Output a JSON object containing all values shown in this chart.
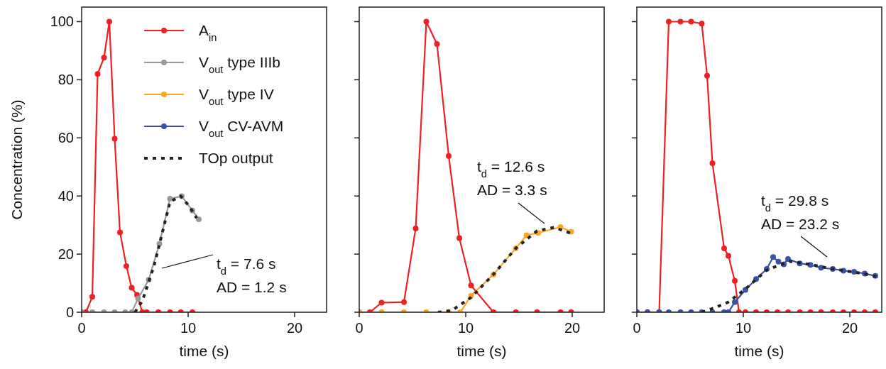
{
  "chart_data": [
    {
      "type": "line",
      "ylabel": "Concentration (%)",
      "xlabel": "time (s)",
      "xlim": [
        0,
        23
      ],
      "ylim": [
        0,
        105
      ],
      "xticks": [
        0,
        10,
        20
      ],
      "yticks": [
        0,
        20,
        40,
        60,
        80,
        100
      ],
      "legend": "top right",
      "grid": false,
      "annotations": [
        "t$_{d}$ = 7.6 s\nAD = 1.2 s"
      ],
      "series": [
        {
          "name": "A$_{in}$",
          "color": "#ee2025",
          "marker": "circle",
          "line_style": "solid",
          "x": [
            0,
            0.4,
            1.0,
            1.5,
            2.1,
            2.6,
            3.1,
            3.6,
            4.2,
            4.7,
            5.2,
            5.7,
            6.1,
            7.2,
            8.3,
            9.3,
            10.4
          ],
          "values": [
            0,
            0,
            5.3,
            82,
            87.6,
            100,
            59.7,
            27.5,
            15.9,
            8.4,
            6,
            0,
            0,
            0,
            0,
            0,
            0
          ]
        },
        {
          "name": "V$_{out}$ type IIIb",
          "color": "#999999",
          "marker": "circle",
          "line_style": "solid",
          "x": [
            0,
            1,
            2.1,
            3.1,
            4.1,
            4.7,
            5.3,
            6.3,
            7.3,
            8.3,
            9.4,
            10.4,
            11.0
          ],
          "values": [
            0,
            0,
            0,
            0,
            0,
            0,
            4.7,
            11.2,
            23.5,
            39.1,
            39.9,
            35,
            32
          ]
        },
        {
          "name": "TOp output",
          "color": "#222222",
          "marker": "none",
          "line_style": "dotted",
          "x": [
            5.0,
            5.7,
            6.8,
            8.3,
            9.3,
            10.1,
            10.8
          ],
          "values": [
            0,
            3.9,
            16,
            38,
            40,
            36.5,
            32.4
          ]
        }
      ]
    },
    {
      "type": "line",
      "xlabel": "time (s)",
      "xlim": [
        0,
        23
      ],
      "ylim": [
        0,
        105
      ],
      "xticks": [
        0,
        10,
        20
      ],
      "yticks": [
        0,
        20,
        40,
        60,
        80,
        100
      ],
      "tick_labels": "x",
      "grid": false,
      "annotations": [
        "t$_{d}$ = 12.6 s\nAD = 3.3 s"
      ],
      "series": [
        {
          "name": "A$_{in}$",
          "color": "#ee2025",
          "marker": "circle",
          "line_style": "solid",
          "x": [
            0,
            1.0,
            2.1,
            4.2,
            5.3,
            6.3,
            7.3,
            8.4,
            9.4,
            10.5,
            12.6,
            14.7,
            16.7,
            18.9,
            19.9
          ],
          "values": [
            0,
            0,
            3.3,
            3.5,
            28.8,
            100,
            92.3,
            53.8,
            25.5,
            9.2,
            0,
            0,
            0,
            0,
            0
          ]
        },
        {
          "name": "V$_{out}$ type IV",
          "color": "#f9a825",
          "marker": "circle",
          "line_style": "solid",
          "x": [
            0,
            2.1,
            4.2,
            6.3,
            8.4,
            9.5,
            10.5,
            12.6,
            14.7,
            15.7,
            16.8,
            18.9,
            19.9
          ],
          "values": [
            0,
            0,
            0,
            0,
            0,
            0,
            5.7,
            13,
            22,
            26.5,
            27.3,
            29.3,
            27.7
          ]
        },
        {
          "name": "TOp output",
          "color": "#222222",
          "marker": "none",
          "line_style": "dotted",
          "x": [
            7.4,
            8.7,
            10.5,
            12.6,
            14.7,
            16.7,
            18.3,
            19.9
          ],
          "values": [
            0,
            0.6,
            5.1,
            13,
            22,
            28,
            29.2,
            27.1
          ]
        }
      ]
    },
    {
      "type": "line",
      "xlabel": "time (s)",
      "xlim": [
        0,
        23
      ],
      "ylim": [
        0,
        105
      ],
      "xticks": [
        0,
        10,
        20
      ],
      "yticks": [
        0,
        20,
        40,
        60,
        80,
        100
      ],
      "tick_labels": "x",
      "grid": false,
      "annotations": [
        "t$_{d}$ = 29.8 s\nAD = 23.2 s"
      ],
      "series": [
        {
          "name": "A$_{in}$",
          "color": "#ee2025",
          "marker": "circle",
          "line_style": "solid",
          "x": [
            0,
            1.0,
            2.1,
            3.0,
            4.1,
            5.1,
            6.1,
            6.6,
            7.1,
            8.2,
            8.6,
            9.2,
            9.6,
            10.2,
            11.2,
            12.2,
            13.2,
            14.2,
            15.3,
            16.3,
            17.3,
            18.4,
            19.4,
            20.4,
            21.4,
            22.4
          ],
          "values": [
            0,
            0,
            0,
            100,
            100,
            100,
            99.3,
            81.4,
            51.3,
            22,
            19.4,
            10.8,
            0,
            0,
            0,
            0,
            0,
            0,
            0,
            0,
            0,
            0,
            0,
            0,
            0,
            0
          ]
        },
        {
          "name": "V$_{out}$ CV-AVM",
          "color": "#3a53a4",
          "marker": "circle",
          "line_style": "solid",
          "x": [
            0,
            1.0,
            2.1,
            3.0,
            4.1,
            5.1,
            6.1,
            7.1,
            8.2,
            8.6,
            9.2,
            10.2,
            11.2,
            12.2,
            12.8,
            13.3,
            13.8,
            14.2,
            15.3,
            16.3,
            17.3,
            18.4,
            19.4,
            20.4,
            21.4,
            22.4
          ],
          "values": [
            0,
            0,
            0,
            0,
            0,
            0,
            0,
            0,
            0,
            0,
            3.5,
            7.7,
            11.4,
            14.9,
            19,
            17.4,
            16.5,
            18.3,
            16.8,
            16.3,
            15.3,
            14.9,
            14.3,
            13.9,
            13.3,
            12.5
          ]
        },
        {
          "name": "TOp output",
          "color": "#222222",
          "marker": "none",
          "line_style": "dotted",
          "x": [
            6.1,
            7.3,
            8.6,
            10.2,
            12.2,
            13.3,
            14.4,
            16.2,
            18.4,
            21.1,
            22.8
          ],
          "values": [
            0,
            1.5,
            3.5,
            8,
            14.5,
            16.1,
            17.5,
            16.5,
            14.9,
            13.4,
            12
          ]
        }
      ]
    }
  ]
}
